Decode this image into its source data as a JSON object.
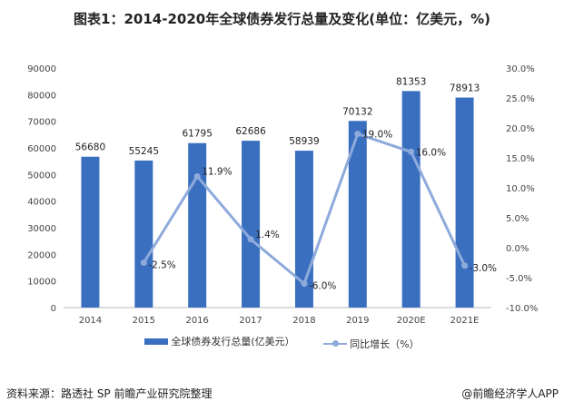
{
  "chart_data": {
    "type": "bar+line",
    "title": "图表1：2014-2020年全球债券发行总量及变化(单位：亿美元，%)",
    "categories": [
      "2014",
      "2015",
      "2016",
      "2017",
      "2018",
      "2019",
      "2020E",
      "2021E"
    ],
    "series": [
      {
        "name": "全球债券发行总量(亿美元）",
        "type": "bar",
        "axis": "left",
        "values": [
          56680,
          55245,
          61795,
          62686,
          58939,
          70132,
          81353,
          78913
        ],
        "color": "#3a6fc0"
      },
      {
        "name": "同比增长（%）",
        "type": "line",
        "axis": "right",
        "values": [
          null,
          -2.5,
          11.9,
          1.4,
          -6.0,
          19.0,
          16.0,
          -3.0
        ],
        "labels": [
          "",
          "-2.5%",
          "11.9%",
          "1.4%",
          "-6.0%",
          "19.0%",
          "16.0%",
          "-3.0%"
        ],
        "color": "#8eaadb"
      }
    ],
    "ylim_left": [
      0,
      90000
    ],
    "yticks_left": [
      "0",
      "10000",
      "20000",
      "30000",
      "40000",
      "50000",
      "60000",
      "70000",
      "80000",
      "90000"
    ],
    "ylim_right": [
      -10,
      30
    ],
    "yticks_right": [
      "-10.0%",
      "-5.0%",
      "0.0%",
      "5.0%",
      "10.0%",
      "15.0%",
      "20.0%",
      "25.0%",
      "30.0%"
    ],
    "grid": false,
    "legend_position": "bottom"
  },
  "footer": {
    "source": "资料来源：路透社 SP 前瞻产业研究院整理",
    "credit": "@前瞻经济学人APP"
  }
}
